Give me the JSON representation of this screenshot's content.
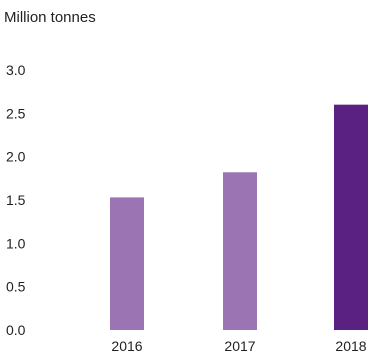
{
  "chart_data": {
    "type": "bar",
    "unit_label": "Million tonnes",
    "categories": [
      "2016",
      "2017",
      "2018"
    ],
    "values": [
      1.53,
      1.82,
      2.6
    ],
    "bar_colors": [
      "#9b75b3",
      "#9b75b3",
      "#5b2182"
    ],
    "yticks": [
      "0.0",
      "0.5",
      "1.0",
      "1.5",
      "2.0",
      "2.5",
      "3.0"
    ],
    "ylim": [
      0,
      3.0
    ],
    "grid": false,
    "legend": "none"
  }
}
